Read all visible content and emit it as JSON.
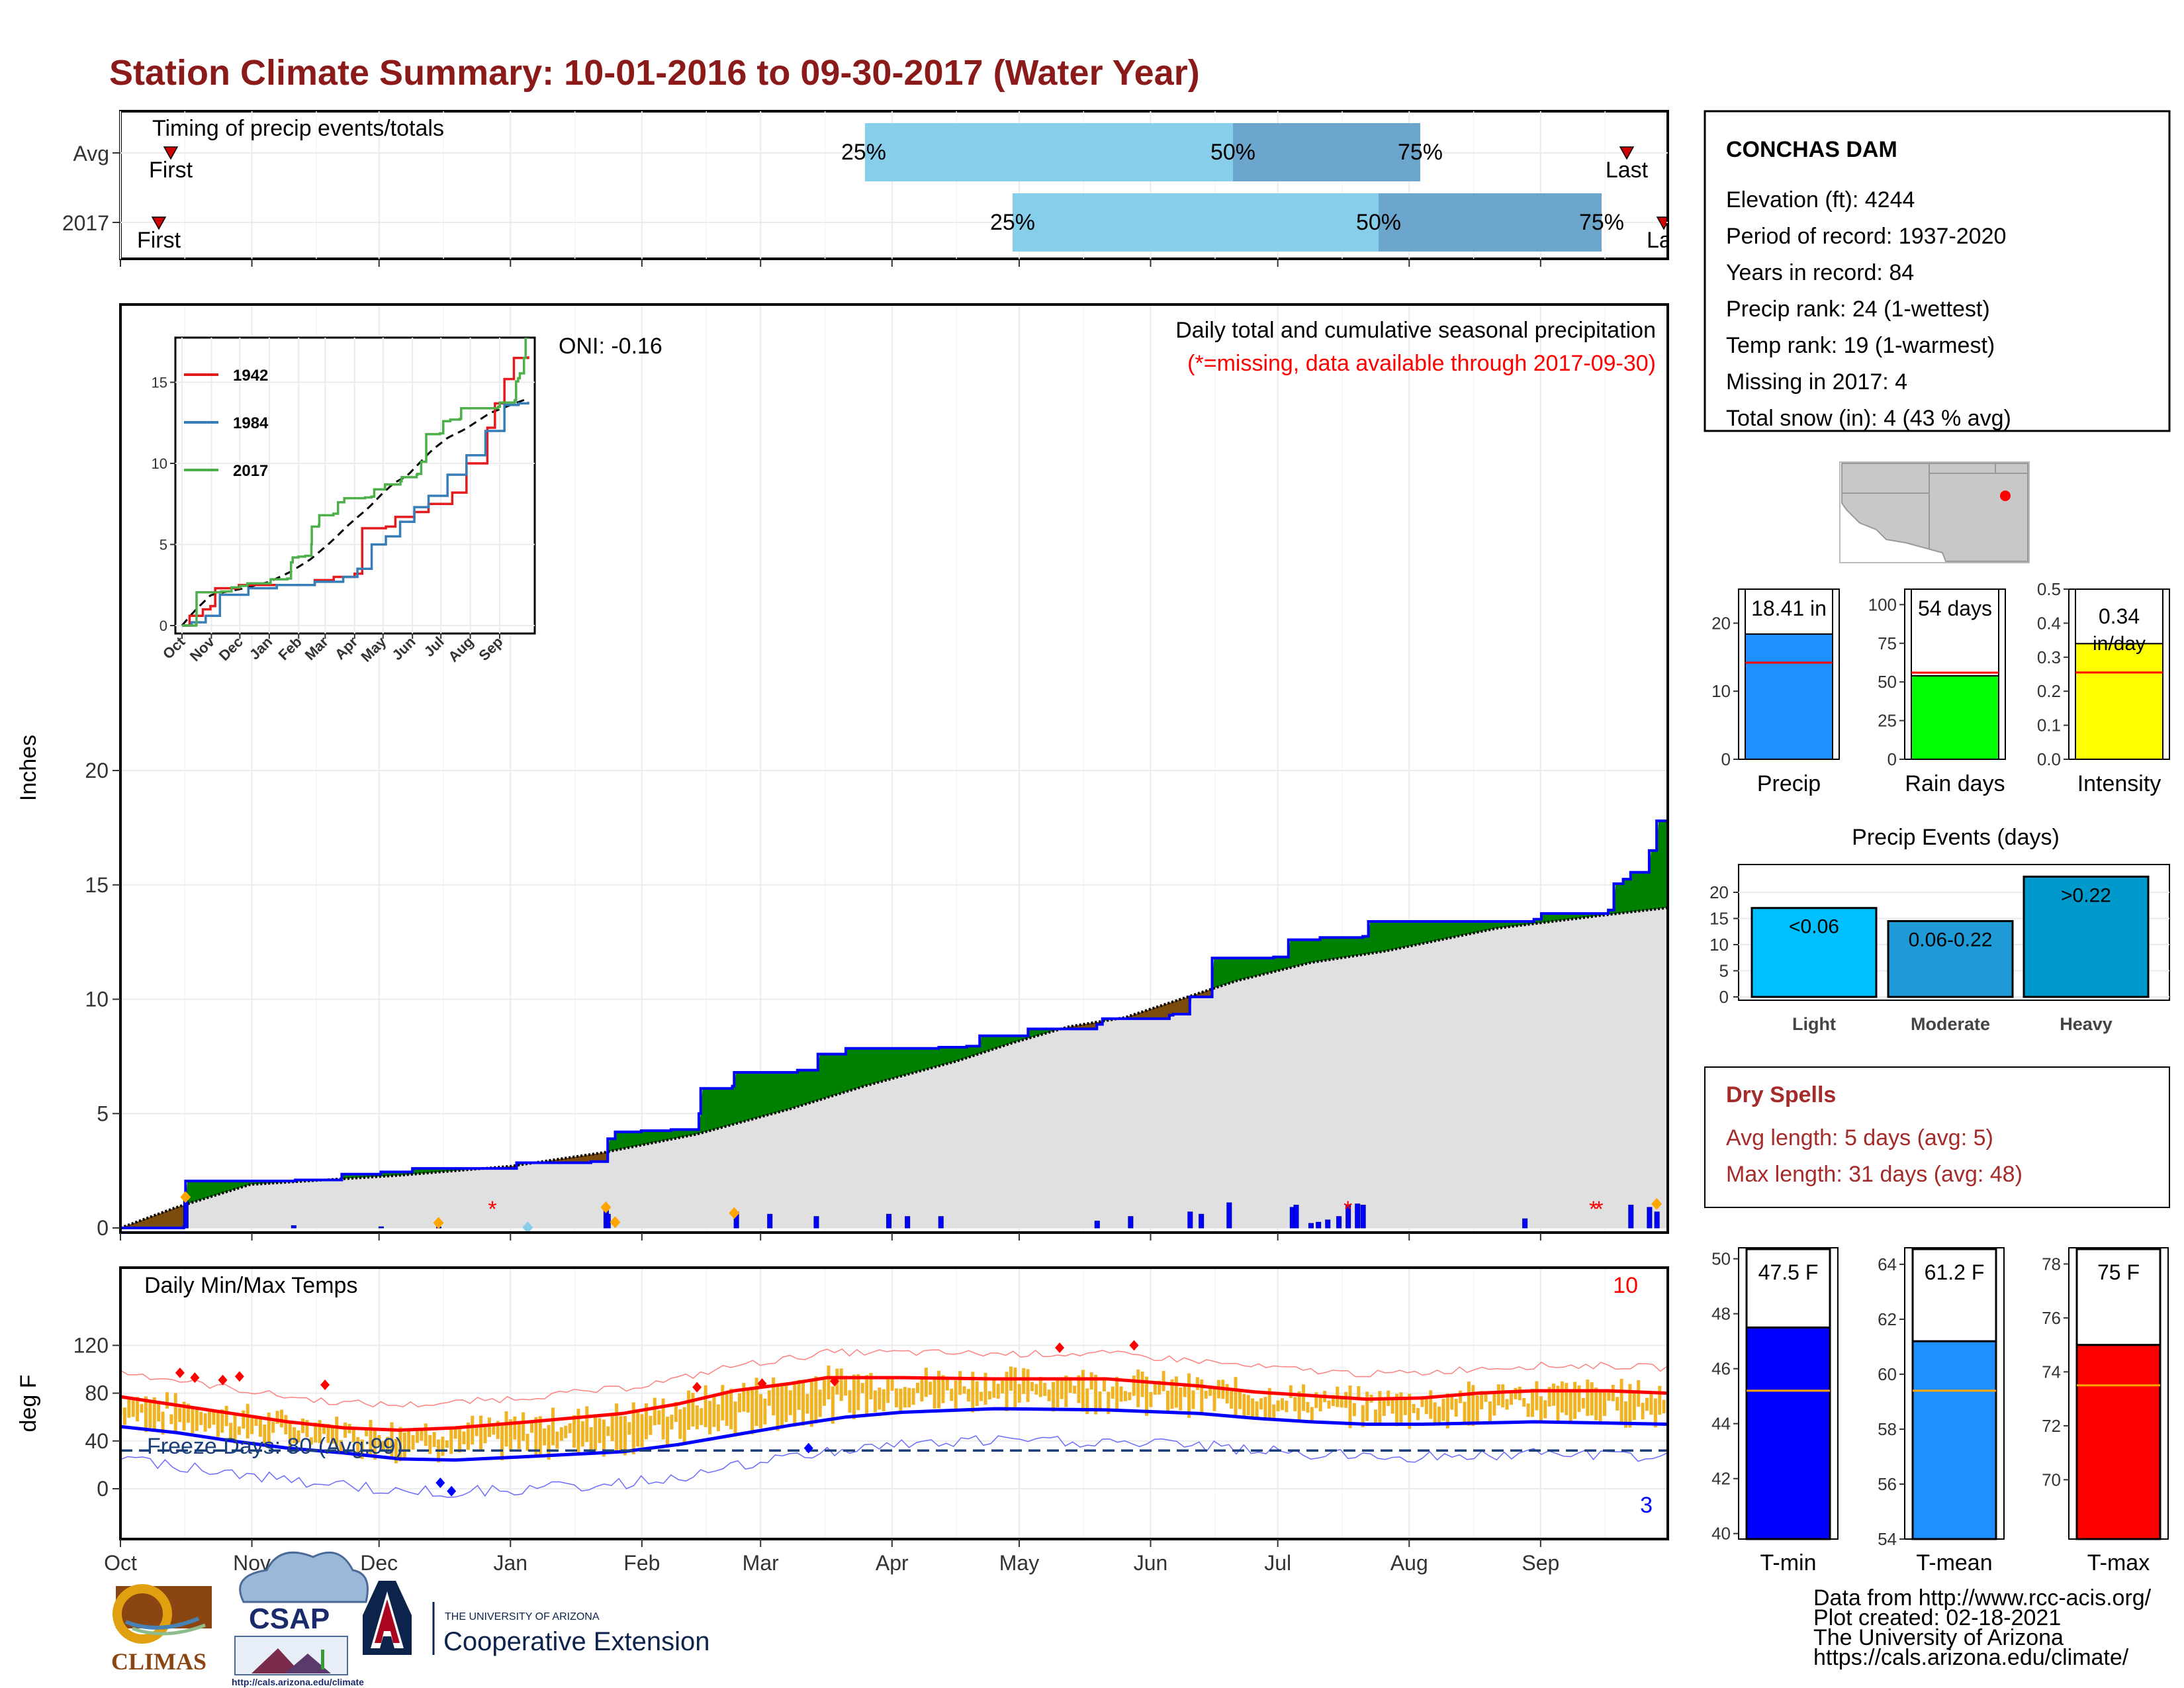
{
  "title": "Station Climate Summary: 10-01-2016 to 09-30-2017 (Water Year)",
  "timing": {
    "caption": "Timing of precip events/totals",
    "rows": [
      {
        "label": "Avg",
        "first_label": "First",
        "last_label": "Last",
        "p25_label": "25%",
        "p50_label": "50%",
        "p75_label": "75%"
      },
      {
        "label": "2017",
        "first_label": "First",
        "last_label": "Last",
        "p25_label": "25%",
        "p50_label": "50%",
        "p75_label": "75%"
      }
    ]
  },
  "precip_panel": {
    "ylabel": "Inches",
    "oni": "ONI: -0.16",
    "caption": "Daily total and cumulative seasonal precipitation",
    "missing_note": "(*=missing, data available through 2017-09-30)",
    "yticks": [
      "0",
      "5",
      "10",
      "15",
      "20"
    ],
    "inset": {
      "legend": [
        "1942",
        "1984",
        "2017"
      ],
      "colors": [
        "#e41a1c",
        "#377eb8",
        "#4daf4a"
      ],
      "yticks": [
        "0",
        "5",
        "10",
        "15"
      ],
      "xticks": [
        "Oct",
        "Nov",
        "Dec",
        "Jan",
        "Feb",
        "Mar",
        "Apr",
        "May",
        "Jun",
        "Jul",
        "Aug",
        "Sep"
      ]
    }
  },
  "temp_panel": {
    "ylabel": "deg F",
    "caption": "Daily Min/Max Temps",
    "freeze": "Freeze Days: 80 (Avg:99)",
    "count_hot": "10",
    "count_cold": "3",
    "yticks": [
      "0",
      "40",
      "80",
      "120"
    ]
  },
  "months": [
    "Oct",
    "Nov",
    "Dec",
    "Jan",
    "Feb",
    "Mar",
    "Apr",
    "May",
    "Jun",
    "Jul",
    "Aug",
    "Sep"
  ],
  "station": {
    "name": "CONCHAS DAM",
    "lines": [
      "Elevation (ft): 4244",
      "Period of record: 1937-2020",
      "Years in record: 84",
      "Precip rank: 24 (1-wettest)",
      "Temp rank: 19 (1-warmest)",
      "Missing in 2017: 4",
      "Total snow (in): 4 (43 % avg)"
    ]
  },
  "summary_bars": [
    {
      "label": "Precip",
      "value_label": "18.41 in",
      "value": 18.41,
      "avg": 14.2,
      "color": "#1E90FF",
      "yticks": [
        "0",
        "10",
        "20"
      ],
      "ymax": 25
    },
    {
      "label": "Rain days",
      "value_label": "54 days",
      "value": 54,
      "avg": 56,
      "color": "#00FF00",
      "yticks": [
        "0",
        "25",
        "50",
        "75",
        "100"
      ],
      "ymax": 110
    },
    {
      "label": "Intensity",
      "value_label": "0.34",
      "value_sub": "in/day",
      "value": 0.34,
      "avg": 0.255,
      "color": "#FFFF00",
      "yticks": [
        "0.0",
        "0.1",
        "0.2",
        "0.3",
        "0.4",
        "0.5"
      ],
      "ymax": 0.5
    }
  ],
  "events": {
    "title": "Precip Events (days)",
    "yticks": [
      "0",
      "5",
      "10",
      "15",
      "20"
    ],
    "bars": [
      {
        "label": "Light",
        "value_label": "<0.06",
        "value": 17,
        "color": "#00BFFF"
      },
      {
        "label": "Moderate",
        "value_label": "0.06-0.22",
        "value": 14.5,
        "color": "#1E9BD7"
      },
      {
        "label": "Heavy",
        "value_label": ">0.22",
        "value": 23,
        "color": "#0099CC"
      }
    ]
  },
  "dry_spells": {
    "title": "Dry Spells",
    "avg": "Avg length: 5 days (avg: 5)",
    "max": "Max length: 31 days (avg: 48)"
  },
  "temp_bars": [
    {
      "label": "T-min",
      "value_label": "47.5 F",
      "value": 47.5,
      "avg": 45.2,
      "color": "#0000FF",
      "yticks": [
        "40",
        "42",
        "44",
        "46",
        "48",
        "50"
      ],
      "ymin": 39.8,
      "ymax": 50.4
    },
    {
      "label": "T-mean",
      "value_label": "61.2 F",
      "value": 61.2,
      "avg": 59.4,
      "color": "#1E90FF",
      "yticks": [
        "54",
        "56",
        "58",
        "60",
        "62",
        "64"
      ],
      "ymin": 54,
      "ymax": 64.6
    },
    {
      "label": "T-max",
      "value_label": "75 F",
      "value": 75,
      "avg": 73.5,
      "color": "#FF0000",
      "yticks": [
        "70",
        "72",
        "74",
        "76",
        "78"
      ],
      "ymin": 67.8,
      "ymax": 78.6
    }
  ],
  "credits": [
    "Data from http://www.rcc-acis.org/",
    "Plot created: 02-18-2021",
    "The University of Arizona",
    "https://cals.arizona.edu/climate/"
  ],
  "logos": {
    "climas": "CLIMAS",
    "csap": "CSAP",
    "csap_url": "http://cals.arizona.edu/climate",
    "ua_small": "THE UNIVERSITY OF ARIZONA",
    "ua_big": "Cooperative Extension"
  },
  "chart_data": [
    {
      "type": "area",
      "title": "Daily total and cumulative seasonal precipitation",
      "ylabel": "Inches",
      "ylim": [
        0,
        20
      ],
      "x_unit": "day of water year (Oct 1 = 0)",
      "cumulative_2017": [
        [
          0,
          0
        ],
        [
          34,
          0.05
        ],
        [
          35,
          2.05
        ],
        [
          94,
          2.1
        ],
        [
          119,
          2.35
        ],
        [
          140,
          2.45
        ],
        [
          157,
          2.6
        ],
        [
          213,
          2.85
        ],
        [
          253,
          2.9
        ],
        [
          262,
          3.9
        ],
        [
          266,
          4.2
        ],
        [
          280,
          4.25
        ],
        [
          296,
          4.3
        ],
        [
          311,
          5.0
        ],
        [
          312,
          6.1
        ],
        [
          329,
          6.2
        ],
        [
          330,
          6.8
        ],
        [
          364,
          6.9
        ],
        [
          375,
          7.6
        ],
        [
          390,
          7.85
        ],
        [
          440,
          7.9
        ],
        [
          455,
          7.95
        ],
        [
          462,
          8.4
        ],
        [
          488,
          8.7
        ],
        [
          525,
          8.9
        ],
        [
          528,
          9.15
        ],
        [
          564,
          9.3
        ],
        [
          566,
          9.35
        ],
        [
          575,
          10.1
        ],
        [
          587,
          11.8
        ],
        [
          620,
          11.85
        ],
        [
          628,
          12.6
        ],
        [
          645,
          12.7
        ],
        [
          668,
          12.75
        ],
        [
          671,
          13.4
        ],
        [
          760,
          13.5
        ],
        [
          764,
          13.75
        ],
        [
          800,
          13.9
        ],
        [
          803,
          15.05
        ],
        [
          808,
          15.25
        ],
        [
          812,
          15.55
        ],
        [
          822,
          16.5
        ],
        [
          826,
          17.8
        ],
        [
          832,
          18.41
        ]
      ],
      "cumulative_avg": [
        [
          0,
          0
        ],
        [
          30,
          0.9
        ],
        [
          70,
          1.9
        ],
        [
          150,
          2.3
        ],
        [
          210,
          2.7
        ],
        [
          260,
          3.3
        ],
        [
          310,
          4.1
        ],
        [
          360,
          5.2
        ],
        [
          400,
          6.2
        ],
        [
          450,
          7.3
        ],
        [
          480,
          8.1
        ],
        [
          510,
          8.8
        ],
        [
          540,
          9.2
        ],
        [
          570,
          10.0
        ],
        [
          600,
          10.8
        ],
        [
          640,
          11.6
        ],
        [
          680,
          12.1
        ],
        [
          740,
          13.1
        ],
        [
          800,
          13.7
        ],
        [
          832,
          14.0
        ]
      ],
      "daily_bars": [
        [
          35,
          1.35
        ],
        [
          93,
          0.1
        ],
        [
          140,
          0.05
        ],
        [
          171,
          0.04
        ],
        [
          261,
          0.9
        ],
        [
          262,
          0.6
        ],
        [
          331,
          0.7
        ],
        [
          349,
          0.6
        ],
        [
          374,
          0.5
        ],
        [
          413,
          0.6
        ],
        [
          423,
          0.5
        ],
        [
          441,
          0.5
        ],
        [
          525,
          0.3
        ],
        [
          543,
          0.5
        ],
        [
          575,
          0.7
        ],
        [
          581,
          0.6
        ],
        [
          596,
          1.1
        ],
        [
          630,
          0.9
        ],
        [
          632,
          1.0
        ],
        [
          640,
          0.2
        ],
        [
          644,
          0.25
        ],
        [
          649,
          0.35
        ],
        [
          655,
          0.5
        ],
        [
          660,
          1.0
        ],
        [
          665,
          1.05
        ],
        [
          668,
          1.0
        ],
        [
          755,
          0.4
        ],
        [
          812,
          1.0
        ],
        [
          822,
          0.9
        ],
        [
          826,
          0.7
        ]
      ]
    },
    {
      "type": "line",
      "title": "Daily Min/Max Temps",
      "ylabel": "deg F",
      "ylim": [
        -20,
        125
      ],
      "avg_max": [
        [
          0,
          77
        ],
        [
          30,
          70
        ],
        [
          60,
          63
        ],
        [
          90,
          56
        ],
        [
          120,
          51
        ],
        [
          150,
          49
        ],
        [
          180,
          51
        ],
        [
          220,
          56
        ],
        [
          270,
          63
        ],
        [
          300,
          71
        ],
        [
          330,
          82
        ],
        [
          360,
          88
        ],
        [
          380,
          93
        ],
        [
          420,
          93
        ],
        [
          470,
          92
        ],
        [
          530,
          92
        ],
        [
          580,
          86
        ],
        [
          610,
          81
        ],
        [
          640,
          78
        ],
        [
          670,
          75
        ],
        [
          700,
          76
        ],
        [
          730,
          80
        ],
        [
          760,
          82
        ],
        [
          800,
          82
        ],
        [
          832,
          80
        ]
      ],
      "avg_min": [
        [
          0,
          52
        ],
        [
          30,
          47
        ],
        [
          60,
          40
        ],
        [
          90,
          34
        ],
        [
          120,
          30
        ],
        [
          150,
          25
        ],
        [
          180,
          24
        ],
        [
          220,
          27
        ],
        [
          270,
          31
        ],
        [
          300,
          37
        ],
        [
          330,
          45
        ],
        [
          360,
          53
        ],
        [
          390,
          60
        ],
        [
          420,
          64
        ],
        [
          470,
          67
        ],
        [
          530,
          66
        ],
        [
          580,
          63
        ],
        [
          610,
          59
        ],
        [
          640,
          56
        ],
        [
          670,
          54
        ],
        [
          700,
          54
        ],
        [
          730,
          55
        ],
        [
          760,
          56
        ],
        [
          800,
          55
        ],
        [
          832,
          54
        ]
      ],
      "freeze_line": 32
    }
  ]
}
